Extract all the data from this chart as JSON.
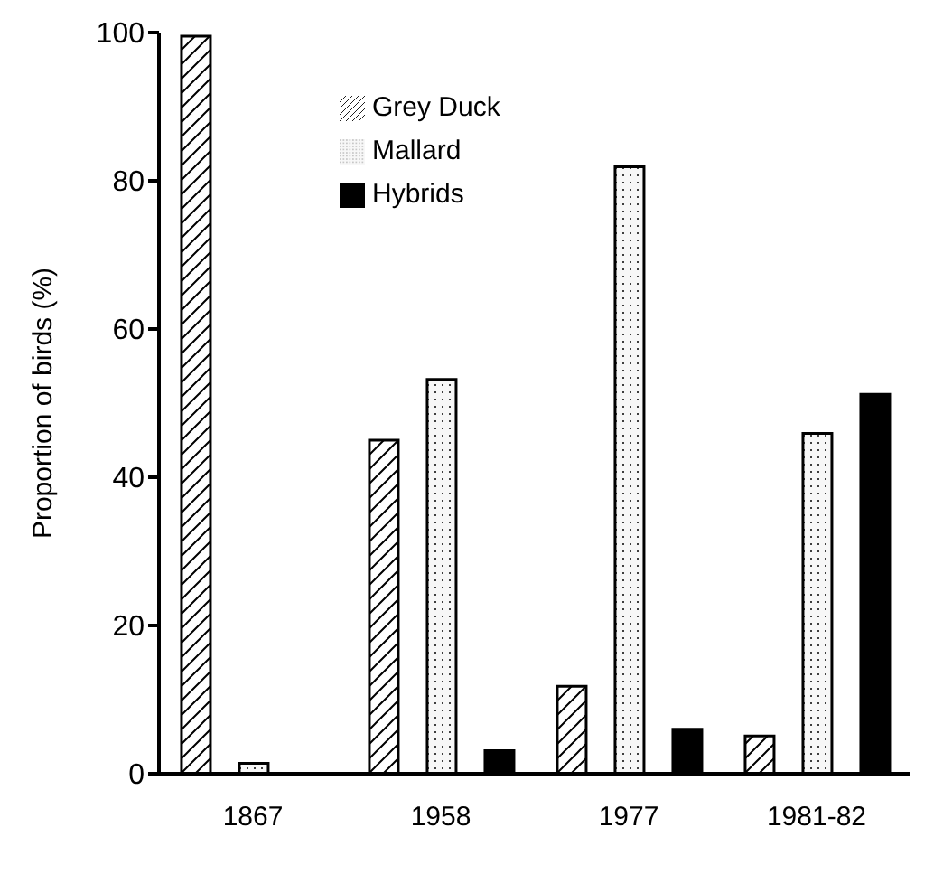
{
  "chart_data": {
    "type": "bar",
    "ylabel": "Proportion of birds (%)",
    "categories": [
      "1867",
      "1958",
      "1977",
      "1981-82"
    ],
    "series": [
      {
        "name": "Grey Duck",
        "color": "#000000",
        "values": [
          99.5,
          45,
          11.8,
          5.1
        ]
      },
      {
        "name": "Mallard",
        "color": "#000000",
        "values": [
          1.4,
          53.2,
          81.9,
          45.9
        ]
      },
      {
        "name": "Hybrids",
        "color": "#000000",
        "values": [
          null,
          3.1,
          6.0,
          51.2
        ]
      }
    ],
    "ylim": [
      0,
      100
    ],
    "yticks": [
      0,
      20,
      40,
      60,
      80,
      100
    ],
    "grid": false,
    "legend": "top"
  }
}
